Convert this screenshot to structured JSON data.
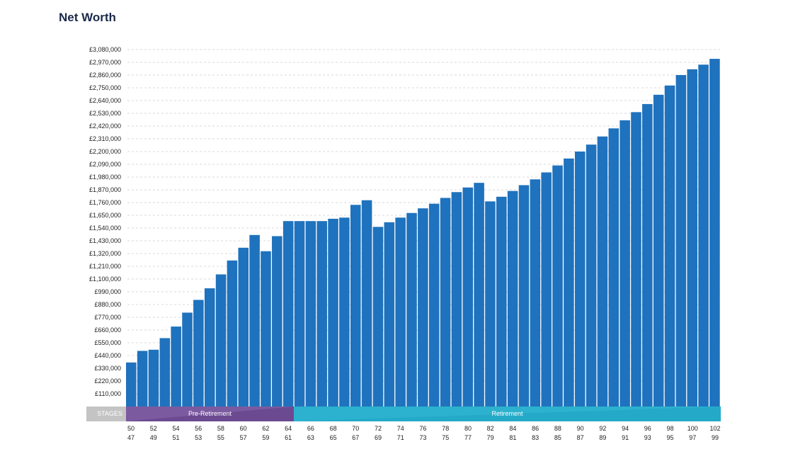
{
  "title": "Net Worth",
  "chart_data": {
    "type": "bar",
    "title": "Net Worth",
    "xlabel": "",
    "ylabel": "",
    "ylim": [
      0,
      3080000
    ],
    "grid": true,
    "bar_color": "#1f72bd",
    "y_ticks": [
      "£110,000",
      "£220,000",
      "£330,000",
      "£440,000",
      "£550,000",
      "£660,000",
      "£770,000",
      "£880,000",
      "£990,000",
      "£1,100,000",
      "£1,210,000",
      "£1,320,000",
      "£1,430,000",
      "£1,540,000",
      "£1,650,000",
      "£1,760,000",
      "£1,870,000",
      "£1,980,000",
      "£2,090,000",
      "£2,200,000",
      "£2,310,000",
      "£2,420,000",
      "£2,530,000",
      "£2,640,000",
      "£2,750,000",
      "£2,860,000",
      "£2,970,000",
      "£3,080,000"
    ],
    "x_labels_top": [
      "50",
      "52",
      "54",
      "56",
      "58",
      "60",
      "62",
      "64",
      "66",
      "68",
      "70",
      "72",
      "74",
      "76",
      "78",
      "80",
      "82",
      "84",
      "86",
      "88",
      "90",
      "92",
      "94",
      "96",
      "98",
      "100",
      "102"
    ],
    "x_labels_bottom": [
      "47",
      "49",
      "51",
      "53",
      "55",
      "57",
      "59",
      "61",
      "63",
      "65",
      "67",
      "69",
      "71",
      "73",
      "75",
      "77",
      "79",
      "81",
      "83",
      "85",
      "87",
      "89",
      "91",
      "93",
      "95",
      "97",
      "99"
    ],
    "values": [
      380000,
      480000,
      490000,
      590000,
      690000,
      810000,
      920000,
      1020000,
      1140000,
      1260000,
      1370000,
      1480000,
      1340000,
      1470000,
      1600000,
      1600000,
      1600000,
      1600000,
      1620000,
      1630000,
      1740000,
      1780000,
      1550000,
      1590000,
      1630000,
      1670000,
      1710000,
      1750000,
      1800000,
      1850000,
      1890000,
      1930000,
      1770000,
      1810000,
      1860000,
      1910000,
      1960000,
      2020000,
      2080000,
      2140000,
      2200000,
      2260000,
      2330000,
      2400000,
      2470000,
      2540000,
      2610000,
      2690000,
      2770000,
      2860000,
      2910000,
      2950000,
      3000000
    ],
    "stages": {
      "header": "STAGES",
      "items": [
        {
          "name": "Pre-Retirement",
          "color": "#7c5aa0"
        },
        {
          "name": "Retirement",
          "color": "#2cb2ce"
        }
      ]
    }
  }
}
